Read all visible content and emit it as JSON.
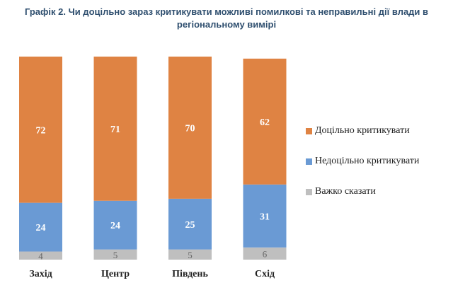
{
  "title": {
    "line1": "Графік 2. Чи доцільно зараз критикувати можливі помилкові та неправильні дії влади в",
    "line2": "регіональному вимірі"
  },
  "chart_data": {
    "type": "bar",
    "stacked": true,
    "categories": [
      "Захід",
      "Центр",
      "Південь",
      "Схід"
    ],
    "series": [
      {
        "name": "Важко сказати",
        "color": "#bfbfbf",
        "values": [
          4,
          5,
          5,
          6
        ]
      },
      {
        "name": "Недоцільно критикувати",
        "color": "#6a9ad4",
        "values": [
          24,
          24,
          25,
          31
        ]
      },
      {
        "name": "Доцільно критикувати",
        "color": "#df8343",
        "values": [
          72,
          71,
          70,
          62
        ]
      }
    ],
    "legend_order": [
      "Доцільно критикувати",
      "Недоцільно критикувати",
      "Важко сказати"
    ],
    "legend_position": "right",
    "ylim": [
      0,
      100
    ],
    "grid": false,
    "data_labels": true
  }
}
